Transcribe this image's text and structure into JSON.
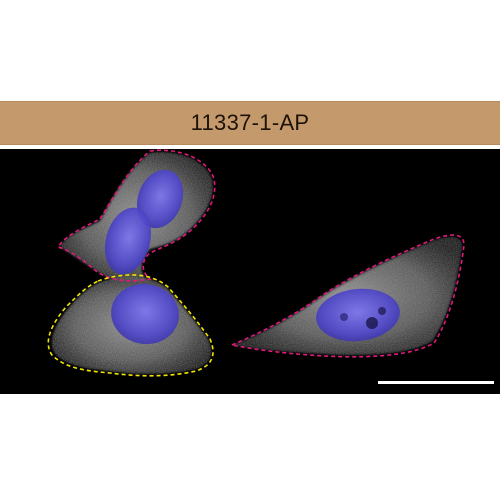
{
  "panel": {
    "title": "11337-1-AP",
    "colors": {
      "title_band": "#c49a6c",
      "background": "#000000",
      "cytoplasm_stain": "#d9d9d9",
      "nucleus_stain": "#5a52d8",
      "outline_primary": "#e0197a",
      "outline_highlight": "#f2e600",
      "scale_bar": "#ffffff"
    }
  },
  "image": {
    "description_icons": [
      "cell-outline-icon",
      "nucleus-icon",
      "scale-bar-icon"
    ]
  }
}
